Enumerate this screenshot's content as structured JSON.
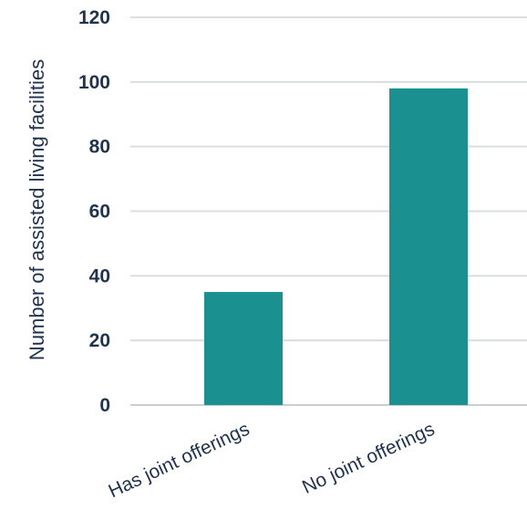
{
  "chart_data": {
    "type": "bar",
    "categories": [
      "Has joint offerings",
      "No joint offerings"
    ],
    "values": [
      35,
      98
    ],
    "title": "",
    "xlabel": "",
    "ylabel": "Number of assisted living facilities",
    "ylim": [
      0,
      120
    ],
    "yticks": [
      0,
      20,
      40,
      60,
      80,
      100,
      120
    ],
    "grid": true,
    "legend": "none",
    "bar_color": "#1a9190"
  }
}
